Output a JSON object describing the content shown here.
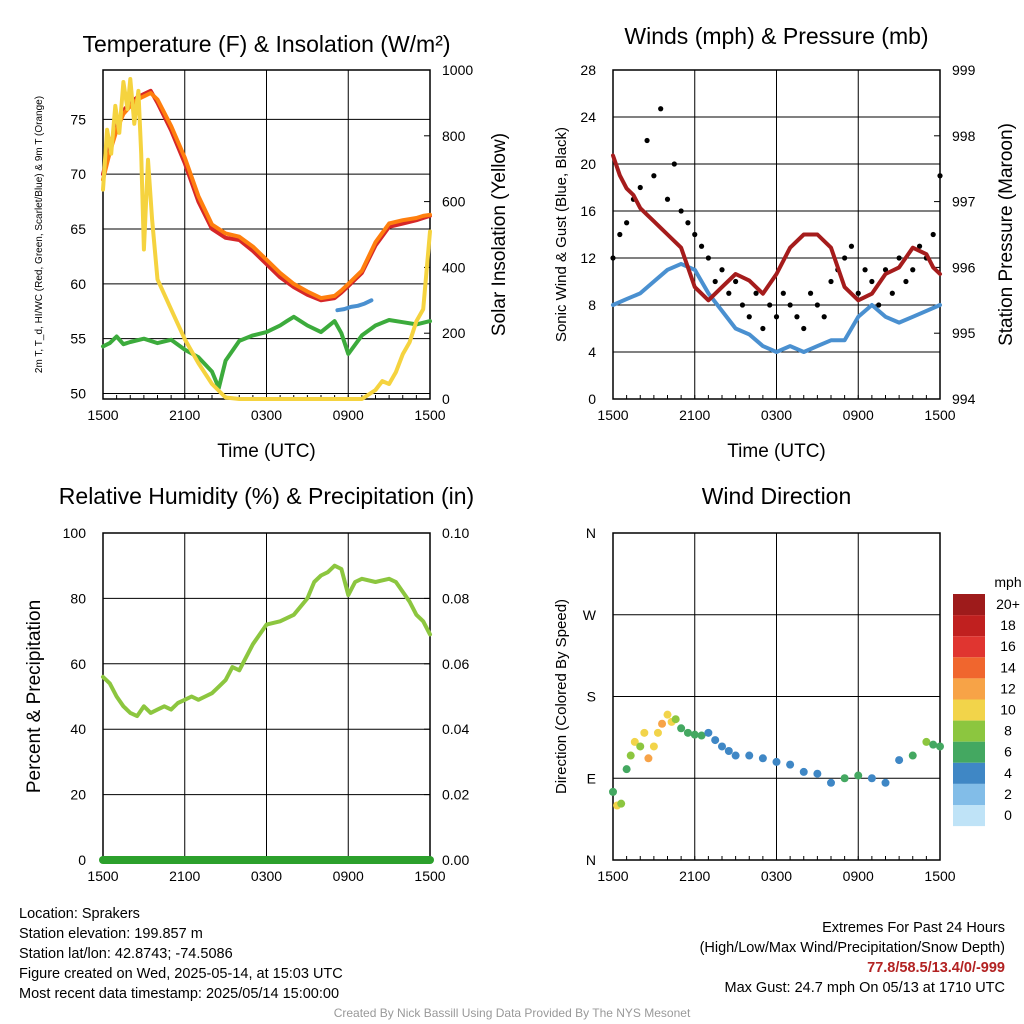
{
  "chart_data": [
    {
      "type": "line",
      "title": "Temperature (F) & Insolation (W/m²)",
      "xlabel": "Time (UTC)",
      "ylabel": "2m T, T_d, HI/WC (Red, Green, Scarlet/Blue) & 9m T (Orange)",
      "y2label": "Solar Insolation (Yellow)",
      "x_ticks": [
        "1500",
        "2100",
        "0300",
        "0900",
        "1500"
      ],
      "y_ticks": [
        50,
        55,
        60,
        65,
        70,
        75
      ],
      "y2_ticks": [
        0,
        200,
        400,
        600,
        800,
        1000
      ],
      "ylim": [
        49.5,
        79.5
      ],
      "y2lim": [
        0,
        1100
      ],
      "x_hours": [
        0,
        24
      ],
      "series": [
        {
          "color": "#d62728",
          "axis": "left",
          "x": [
            0,
            0.5,
            1,
            1.5,
            2,
            2.5,
            3,
            3.5,
            4,
            5,
            6,
            7,
            8,
            9,
            10,
            11,
            12,
            13,
            14,
            15,
            16,
            17,
            17.5,
            18,
            19,
            20,
            21,
            22,
            23,
            23.5,
            24
          ],
          "y": [
            70,
            72.5,
            74.5,
            75.8,
            76.5,
            77,
            77.3,
            77.6,
            76.5,
            74,
            71,
            67.5,
            65,
            64.2,
            64,
            63,
            61.8,
            60.6,
            59.7,
            59,
            58.5,
            58.7,
            59.2,
            59.8,
            61,
            63.5,
            65.2,
            65.5,
            65.8,
            66,
            66.2
          ]
        },
        {
          "color": "#ff7f0e",
          "axis": "left",
          "x": [
            0,
            0.5,
            1,
            1.5,
            2,
            2.5,
            3,
            3.5,
            4,
            5,
            6,
            7,
            8,
            9,
            10,
            11,
            12,
            13,
            14,
            15,
            16,
            17,
            17.5,
            18,
            19,
            20,
            21,
            22,
            23,
            23.5,
            24
          ],
          "y": [
            69.5,
            72,
            74,
            75.5,
            76.2,
            76.8,
            77.1,
            77.4,
            76.8,
            74.4,
            71.5,
            68,
            65.4,
            64.6,
            64.3,
            63.4,
            62.2,
            61,
            60,
            59.3,
            58.7,
            58.9,
            59.4,
            60,
            61.2,
            63.8,
            65.5,
            65.8,
            66,
            66.2,
            66.3
          ]
        },
        {
          "color": "#3cab3c",
          "axis": "left",
          "x": [
            0,
            0.5,
            1,
            1.5,
            2,
            3,
            4,
            5,
            6,
            7,
            8,
            8.5,
            9,
            10,
            11,
            12,
            13,
            13.5,
            14,
            15,
            16,
            17,
            17.5,
            18,
            19,
            20,
            21,
            22,
            23,
            24
          ],
          "y": [
            54.3,
            54.6,
            55.2,
            54.5,
            54.7,
            55,
            54.6,
            54.9,
            54,
            53.3,
            52,
            50.5,
            53,
            54.8,
            55.3,
            55.6,
            56.2,
            56.6,
            57,
            56.2,
            55.6,
            56.6,
            55.5,
            53.6,
            55.3,
            56.2,
            56.7,
            56.5,
            56.3,
            56.6
          ]
        },
        {
          "color": "#4a90d0",
          "axis": "left",
          "x": [
            17.2,
            17.7,
            18.2,
            18.7,
            19.2,
            19.7
          ],
          "y": [
            57.6,
            57.7,
            57.9,
            58.0,
            58.2,
            58.5
          ]
        },
        {
          "color": "#f5d33f",
          "axis": "right",
          "x": [
            0,
            0.3,
            0.6,
            0.9,
            1.2,
            1.5,
            1.8,
            2,
            2.3,
            2.6,
            2.8,
            3,
            3.3,
            3.6,
            4,
            4.5,
            5,
            6,
            7,
            8,
            9,
            10,
            11,
            12,
            13,
            14,
            15,
            16,
            17,
            18,
            19,
            20,
            20.5,
            21,
            21.5,
            22,
            22.5,
            23,
            23.5,
            24
          ],
          "y": [
            700,
            900,
            820,
            980,
            890,
            1060,
            970,
            1070,
            920,
            1030,
            820,
            500,
            800,
            600,
            400,
            350,
            300,
            200,
            120,
            50,
            5,
            0,
            0,
            0,
            0,
            0,
            0,
            0,
            0,
            0,
            0,
            30,
            60,
            50,
            90,
            150,
            190,
            260,
            300,
            560
          ]
        }
      ]
    },
    {
      "type": "line",
      "title": "Winds (mph) & Pressure (mb)",
      "xlabel": "Time (UTC)",
      "ylabel": "Sonic Wind & Gust (Blue, Black)",
      "y2label": "Station Pressure (Maroon)",
      "x_ticks": [
        "1500",
        "2100",
        "0300",
        "0900",
        "1500"
      ],
      "y_ticks": [
        0,
        4,
        8,
        12,
        16,
        20,
        24,
        28
      ],
      "y2_ticks": [
        994,
        995,
        996,
        997,
        998,
        999
      ],
      "ylim": [
        0,
        28
      ],
      "y2lim": [
        994,
        999
      ],
      "x_hours": [
        0,
        24
      ],
      "series": [
        {
          "color": "#4a90d0",
          "axis": "left",
          "x": [
            0,
            1,
            2,
            3,
            4,
            5,
            6,
            7,
            8,
            9,
            10,
            11,
            12,
            13,
            14,
            15,
            16,
            17,
            18,
            19,
            20,
            21,
            22,
            23,
            24
          ],
          "y": [
            8,
            8.5,
            9,
            10,
            11,
            11.5,
            11,
            9,
            7.5,
            6,
            5.5,
            4.5,
            4,
            4.5,
            4,
            4.5,
            5,
            5,
            7,
            8,
            7,
            6.5,
            7,
            7.5,
            8
          ]
        },
        {
          "color": "#000000",
          "axis": "left",
          "style": "points",
          "x": [
            0,
            0.5,
            1,
            1.5,
            2,
            2.5,
            3,
            3.5,
            4,
            4.5,
            5,
            5.5,
            6,
            6.5,
            7,
            7.5,
            8,
            8.5,
            9,
            9.5,
            10,
            10.5,
            11,
            11.5,
            12,
            12.5,
            13,
            13.5,
            14,
            14.5,
            15,
            15.5,
            16,
            16.5,
            17,
            17.5,
            18,
            18.5,
            19,
            19.5,
            20,
            20.5,
            21,
            21.5,
            22,
            22.5,
            23,
            23.5,
            24
          ],
          "y": [
            12,
            14,
            15,
            17,
            18,
            22,
            19,
            24.7,
            17,
            20,
            16,
            15,
            14,
            13,
            12,
            10,
            11,
            9,
            10,
            8,
            7,
            9,
            6,
            8,
            7,
            9,
            8,
            7,
            6,
            9,
            8,
            7,
            10,
            11,
            12,
            13,
            9,
            11,
            10,
            8,
            11,
            9,
            12,
            10,
            11,
            13,
            12,
            14,
            19
          ]
        },
        {
          "color": "#a51c1c",
          "axis": "right",
          "x": [
            0,
            0.5,
            1,
            1.5,
            2,
            2.5,
            3,
            3.5,
            4,
            5,
            6,
            7,
            8,
            9,
            10,
            11,
            12,
            13,
            14,
            15,
            16,
            17,
            18,
            19,
            20,
            21,
            22,
            23,
            23.5,
            24
          ],
          "y": [
            997.7,
            997.4,
            997.2,
            997.1,
            996.9,
            996.8,
            996.7,
            996.6,
            996.5,
            996.3,
            995.7,
            995.5,
            995.7,
            995.9,
            995.8,
            995.6,
            995.9,
            996.3,
            996.5,
            996.5,
            996.3,
            995.7,
            995.5,
            995.6,
            995.9,
            996,
            996.3,
            996.2,
            996,
            995.9
          ]
        }
      ]
    },
    {
      "type": "line",
      "title": "Relative Humidity (%) & Precipitation (in)",
      "xlabel": "",
      "ylabel": "Percent & Precipitation",
      "x_ticks": [
        "1500",
        "2100",
        "0300",
        "0900",
        "1500"
      ],
      "y_ticks": [
        0,
        20,
        40,
        60,
        80,
        100
      ],
      "y2_ticks": [
        "0.00",
        "0.02",
        "0.04",
        "0.06",
        "0.08",
        "0.10"
      ],
      "ylim": [
        0,
        100
      ],
      "y2lim": [
        0,
        0.1
      ],
      "x_hours": [
        0,
        24
      ],
      "series": [
        {
          "color": "#8cc63f",
          "axis": "left",
          "x": [
            0,
            0.5,
            1,
            1.5,
            2,
            2.5,
            3,
            3.5,
            4,
            4.5,
            5,
            5.5,
            6,
            6.5,
            7,
            7.5,
            8,
            8.5,
            9,
            9.5,
            10,
            11,
            12,
            13,
            14,
            15,
            15.5,
            16,
            16.5,
            17,
            17.5,
            18,
            18.5,
            19,
            20,
            21,
            21.5,
            22,
            22.5,
            23,
            23.5,
            24
          ],
          "y": [
            56,
            54,
            50,
            47,
            45,
            44,
            47,
            45,
            46,
            47,
            46,
            48,
            49,
            50,
            49,
            50,
            51,
            53,
            55,
            59,
            58,
            66,
            72,
            73,
            75,
            80,
            85,
            87,
            88,
            90,
            89,
            81,
            85,
            86,
            85,
            86,
            85,
            82,
            79,
            75,
            73,
            69
          ]
        },
        {
          "color": "#2ca02c",
          "axis": "right",
          "x": [
            0,
            24
          ],
          "y": [
            0,
            0
          ]
        }
      ]
    },
    {
      "type": "scatter",
      "title": "Wind Direction",
      "xlabel": "",
      "ylabel": "Direction (Colored By Speed)",
      "x_ticks": [
        "1500",
        "2100",
        "0300",
        "0900",
        "1500"
      ],
      "y_ticks": [
        "N",
        "E",
        "S",
        "W",
        "N"
      ],
      "ylim": [
        0,
        360
      ],
      "x_hours": [
        0,
        24
      ],
      "colorbar_title": "mph",
      "colorbar_labels": [
        "20+",
        "18",
        "16",
        "14",
        "12",
        "10",
        "8",
        "6",
        "4",
        "2",
        "0"
      ],
      "colorbar_colors": [
        "#9e1b1b",
        "#c0201f",
        "#e03530",
        "#f0662e",
        "#f7a347",
        "#f2d44a",
        "#8cc63f",
        "#44a861",
        "#3f87c5",
        "#82bde8",
        "#bfe3f7"
      ],
      "points": [
        {
          "x": 0,
          "y": 75,
          "s": 6
        },
        {
          "x": 0.3,
          "y": 60,
          "s": 10
        },
        {
          "x": 0.6,
          "y": 62,
          "s": 9
        },
        {
          "x": 1,
          "y": 100,
          "s": 6
        },
        {
          "x": 1.3,
          "y": 115,
          "s": 8
        },
        {
          "x": 1.6,
          "y": 130,
          "s": 11
        },
        {
          "x": 2,
          "y": 125,
          "s": 9
        },
        {
          "x": 2.3,
          "y": 140,
          "s": 10
        },
        {
          "x": 2.6,
          "y": 112,
          "s": 12
        },
        {
          "x": 3,
          "y": 125,
          "s": 10
        },
        {
          "x": 3.3,
          "y": 140,
          "s": 11
        },
        {
          "x": 3.6,
          "y": 150,
          "s": 12
        },
        {
          "x": 4,
          "y": 160,
          "s": 11
        },
        {
          "x": 4.3,
          "y": 152,
          "s": 10
        },
        {
          "x": 4.6,
          "y": 155,
          "s": 8
        },
        {
          "x": 5,
          "y": 145,
          "s": 7
        },
        {
          "x": 5.5,
          "y": 140,
          "s": 7
        },
        {
          "x": 6,
          "y": 138,
          "s": 6
        },
        {
          "x": 6.5,
          "y": 137,
          "s": 6
        },
        {
          "x": 7,
          "y": 140,
          "s": 5
        },
        {
          "x": 7.5,
          "y": 132,
          "s": 5
        },
        {
          "x": 8,
          "y": 125,
          "s": 5
        },
        {
          "x": 8.5,
          "y": 120,
          "s": 4
        },
        {
          "x": 9,
          "y": 115,
          "s": 4
        },
        {
          "x": 10,
          "y": 115,
          "s": 4
        },
        {
          "x": 11,
          "y": 112,
          "s": 4
        },
        {
          "x": 12,
          "y": 108,
          "s": 4
        },
        {
          "x": 13,
          "y": 105,
          "s": 4
        },
        {
          "x": 14,
          "y": 97,
          "s": 4
        },
        {
          "x": 15,
          "y": 95,
          "s": 5
        },
        {
          "x": 16,
          "y": 85,
          "s": 5
        },
        {
          "x": 17,
          "y": 90,
          "s": 6
        },
        {
          "x": 18,
          "y": 93,
          "s": 7
        },
        {
          "x": 19,
          "y": 90,
          "s": 5
        },
        {
          "x": 20,
          "y": 85,
          "s": 4
        },
        {
          "x": 21,
          "y": 110,
          "s": 5
        },
        {
          "x": 22,
          "y": 115,
          "s": 6
        },
        {
          "x": 23,
          "y": 130,
          "s": 8
        },
        {
          "x": 23.5,
          "y": 127,
          "s": 7
        },
        {
          "x": 24,
          "y": 125,
          "s": 6
        }
      ]
    }
  ],
  "footer": {
    "location": "Location: Sprakers",
    "elevation": "Station elevation: 199.857 m",
    "latlon": "Station lat/lon: 42.8743; -74.5086",
    "created": "Figure created on Wed, 2025-05-14, at 15:03 UTC",
    "timestamp": "Most recent data timestamp: 2025/05/14 15:00:00",
    "extremes_title": "Extremes For Past 24 Hours",
    "extremes_subtitle": "(High/Low/Max Wind/Precipitation/Snow Depth)",
    "extremes_values": "77.8/58.5/13.4/0/-999",
    "max_gust": "Max Gust: 24.7 mph On 05/13 at 1710 UTC",
    "credit": "Created By Nick Bassill Using Data Provided By The NYS Mesonet"
  }
}
